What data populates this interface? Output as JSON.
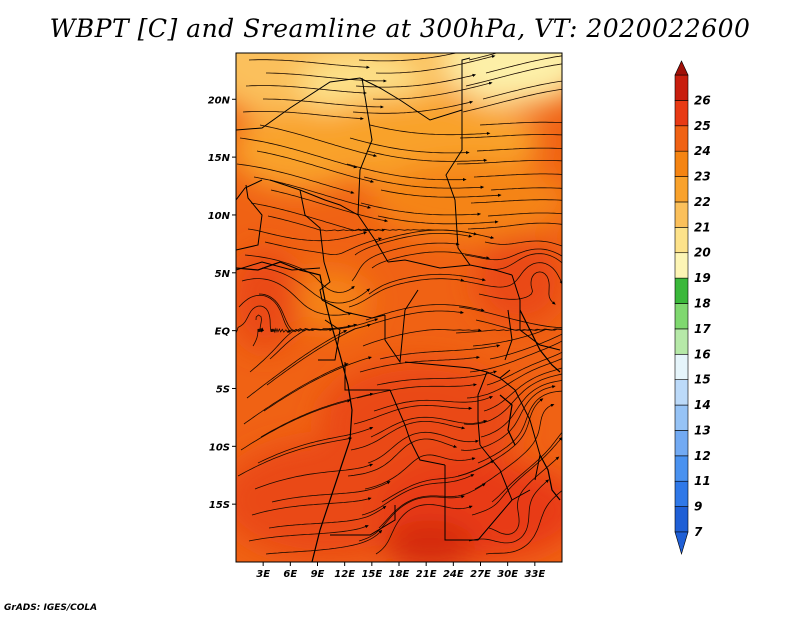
{
  "title": "WBPT [C] and Sreamline at 300hPa, VT: 2020022600",
  "credit": "GrADS: IGES/COLA",
  "map": {
    "lon_range": [
      0,
      36
    ],
    "lat_range": [
      -20,
      24
    ],
    "lat_ticks": [
      {
        "value": 20,
        "label": "20N"
      },
      {
        "value": 15,
        "label": "15N"
      },
      {
        "value": 10,
        "label": "10N"
      },
      {
        "value": 5,
        "label": "5N"
      },
      {
        "value": 0,
        "label": "EQ"
      },
      {
        "value": -5,
        "label": "5S"
      },
      {
        "value": -10,
        "label": "10S"
      },
      {
        "value": -15,
        "label": "15S"
      }
    ],
    "lon_ticks": [
      {
        "value": 3,
        "label": "3E"
      },
      {
        "value": 6,
        "label": "6E"
      },
      {
        "value": 9,
        "label": "9E"
      },
      {
        "value": 12,
        "label": "12E"
      },
      {
        "value": 15,
        "label": "15E"
      },
      {
        "value": 18,
        "label": "18E"
      },
      {
        "value": 21,
        "label": "21E"
      },
      {
        "value": 24,
        "label": "24E"
      },
      {
        "value": 27,
        "label": "27E"
      },
      {
        "value": 30,
        "label": "30E"
      },
      {
        "value": 33,
        "label": "33E"
      }
    ]
  },
  "colorbar": {
    "levels": [
      {
        "label": "7",
        "color": "#1f5fd6"
      },
      {
        "label": "9",
        "color": "#2f78e8"
      },
      {
        "label": "11",
        "color": "#4a92f0"
      },
      {
        "label": "12",
        "color": "#72aaf3"
      },
      {
        "label": "13",
        "color": "#96c3f6"
      },
      {
        "label": "14",
        "color": "#bcdaf9"
      },
      {
        "label": "15",
        "color": "#e6f5fb"
      },
      {
        "label": "16",
        "color": "#b6e9a8"
      },
      {
        "label": "17",
        "color": "#7fd86f"
      },
      {
        "label": "18",
        "color": "#3ab83a"
      },
      {
        "label": "19",
        "color": "#fdf5b5"
      },
      {
        "label": "20",
        "color": "#fde28a"
      },
      {
        "label": "21",
        "color": "#fbc05b"
      },
      {
        "label": "22",
        "color": "#f9a22c"
      },
      {
        "label": "23",
        "color": "#f58412"
      },
      {
        "label": "24",
        "color": "#f06214"
      },
      {
        "label": "25",
        "color": "#e83a14"
      },
      {
        "label": "26",
        "color": "#c81e0e"
      }
    ],
    "over_color": "#a01008",
    "under_color": "#1f5fd6"
  }
}
